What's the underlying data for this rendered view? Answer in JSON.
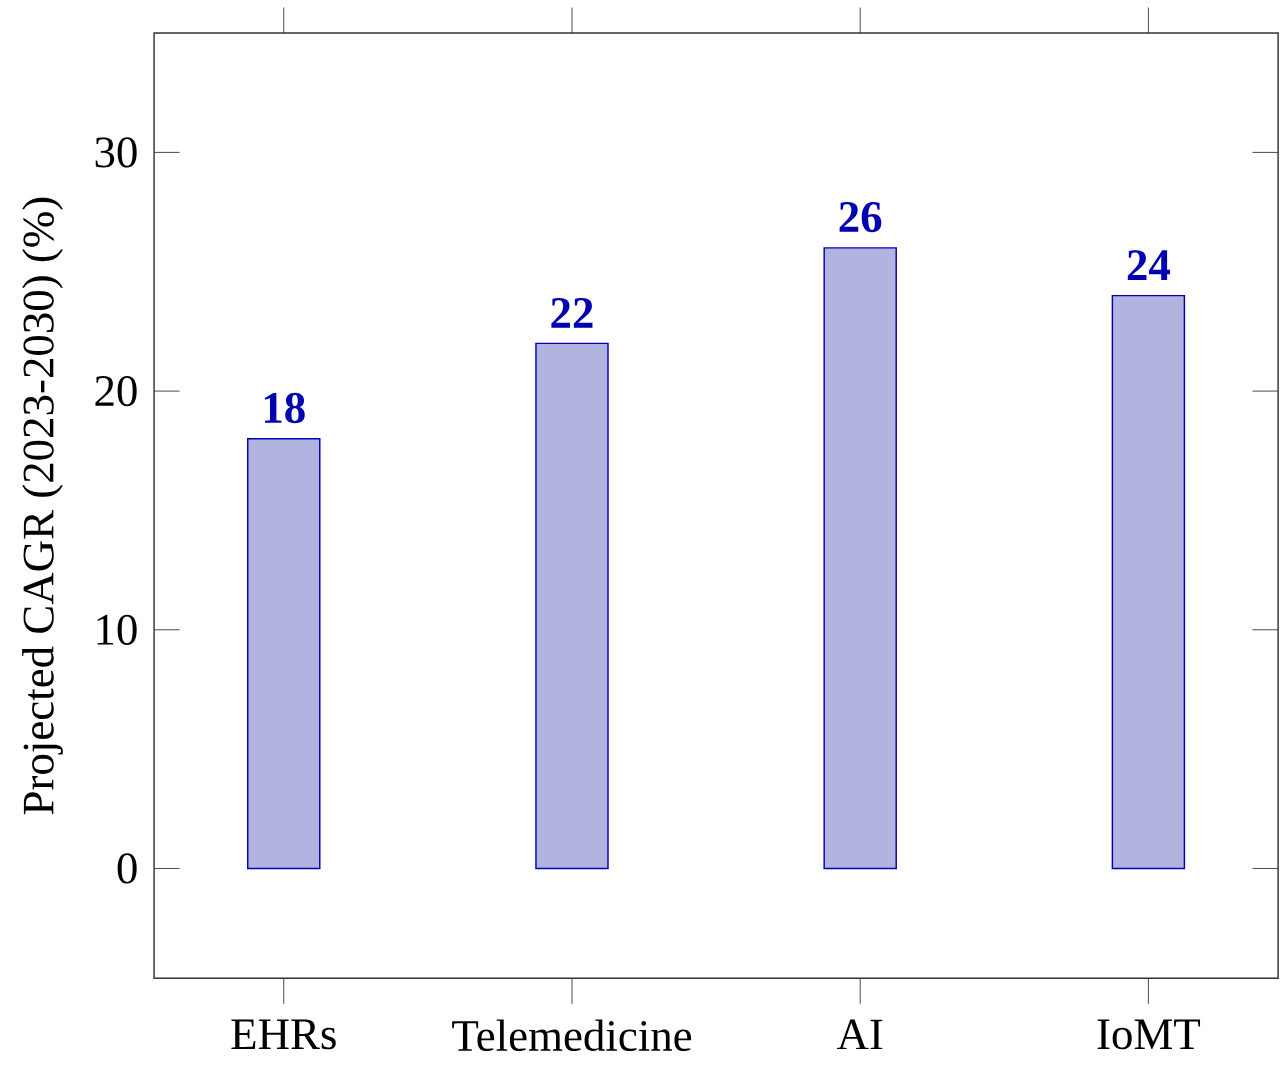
{
  "chart_data": {
    "type": "bar",
    "categories": [
      "EHRs",
      "Telemedicine",
      "AI",
      "IoMT"
    ],
    "values": [
      18,
      22,
      26,
      24
    ],
    "color": "#b3b3e0",
    "ylabel": "Projected CAGR (2023-2030) (%)",
    "ylim": [
      -4.6,
      35
    ],
    "yticks": [
      0,
      10,
      20,
      30
    ],
    "data_labels": true
  }
}
